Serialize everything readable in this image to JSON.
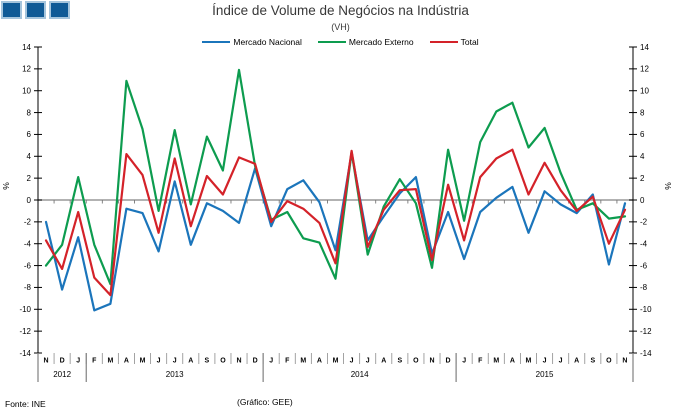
{
  "header": {
    "logo_squares": 3,
    "title": "Índice de Volume de Negócios na Indústria",
    "subtitle": "(VH)"
  },
  "footer": {
    "source": "Fonte: INE",
    "credit": "(Gráfico: GEE)"
  },
  "axes": {
    "y_left_unit": "%",
    "y_right_unit": "%"
  },
  "chart_data": {
    "type": "line",
    "title": "Índice de Volume de Negócios na Indústria",
    "subtitle": "(VH)",
    "ylabel": "%",
    "ylim": [
      -14,
      14
    ],
    "ytick_step": 2,
    "grid": "zero-line-only",
    "legend_position": "top",
    "categories": [
      "N",
      "D",
      "J",
      "F",
      "M",
      "A",
      "M",
      "J",
      "J",
      "A",
      "S",
      "O",
      "N",
      "D",
      "J",
      "F",
      "M",
      "A",
      "M",
      "J",
      "J",
      "A",
      "S",
      "O",
      "N",
      "D",
      "J",
      "F",
      "M",
      "A",
      "M",
      "J",
      "J",
      "A",
      "S",
      "O",
      "N"
    ],
    "year_groups": [
      {
        "label": "2012",
        "from": 0,
        "to": 2
      },
      {
        "label": "2013",
        "from": 3,
        "to": 13
      },
      {
        "label": "2014",
        "from": 14,
        "to": 25
      },
      {
        "label": "2015",
        "from": 26,
        "to": 36
      }
    ],
    "series": [
      {
        "name": "Mercado Nacional",
        "color": "#1B75BB",
        "values": [
          -2.0,
          -8.2,
          -3.4,
          -10.1,
          -9.5,
          -0.8,
          -1.2,
          -4.7,
          1.7,
          -4.1,
          -0.3,
          -1.0,
          -2.1,
          2.9,
          -2.4,
          1.0,
          1.8,
          -0.2,
          -4.6,
          4.3,
          -3.7,
          -1.5,
          0.6,
          2.1,
          -4.9,
          -1.1,
          -5.4,
          -1.1,
          0.2,
          1.2,
          -3.0,
          0.8,
          -0.4,
          -1.2,
          0.5,
          -5.9,
          -0.3
        ]
      },
      {
        "name": "Mercado Externo",
        "color": "#0D9C4F",
        "values": [
          -6.0,
          -4.1,
          2.1,
          -4.1,
          -7.7,
          10.9,
          6.5,
          -1.0,
          6.4,
          -0.4,
          5.8,
          2.7,
          11.9,
          3.1,
          -1.8,
          -1.1,
          -3.5,
          -3.9,
          -7.2,
          4.4,
          -5.0,
          -0.6,
          1.9,
          -0.3,
          -6.2,
          4.6,
          -1.9,
          5.3,
          8.1,
          8.9,
          4.8,
          6.6,
          2.5,
          -0.9,
          -0.3,
          -1.7,
          -1.5
        ]
      },
      {
        "name": "Total",
        "color": "#D42229",
        "values": [
          -3.7,
          -6.3,
          -1.1,
          -7.1,
          -8.7,
          4.2,
          2.3,
          -3.0,
          3.8,
          -2.4,
          2.2,
          0.5,
          3.9,
          3.3,
          -2.0,
          -0.1,
          -0.8,
          -2.1,
          -5.8,
          4.5,
          -4.3,
          -0.9,
          0.9,
          1.0,
          -5.5,
          1.4,
          -3.7,
          2.1,
          3.8,
          4.6,
          0.5,
          3.4,
          0.9,
          -1.0,
          0.3,
          -4.0,
          -0.9
        ]
      }
    ]
  }
}
